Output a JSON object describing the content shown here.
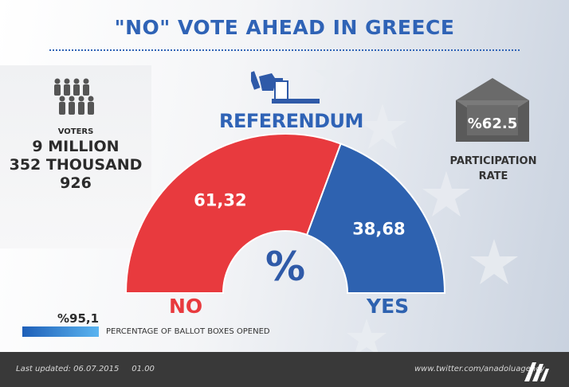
{
  "title": "\"NO\" VOTE AHEAD IN GREECE",
  "voters": {
    "label": "VOTERS",
    "line1": "9 MILLION",
    "line2": "352 THOUSAND",
    "line3": "926"
  },
  "referendum_label": "REFERENDUM",
  "participation": {
    "value": "%62.5",
    "label_line1": "PARTICIPATION",
    "label_line2": "RATE"
  },
  "chart_data": {
    "type": "pie",
    "variant": "half-donut",
    "categories": [
      "NO",
      "YES"
    ],
    "values": [
      61.32,
      38.68
    ],
    "value_labels": [
      "61,32",
      "38,68"
    ],
    "colors": [
      "#e83a3e",
      "#2e62b0"
    ],
    "center_label": "%"
  },
  "ballot": {
    "value": "%95,1",
    "value_number": 95.1,
    "label": "PERCENTAGE OF BALLOT BOXES OPENED"
  },
  "footer": {
    "updated": "Last updated: 06.07.2015     01.00",
    "twitter": "www.twitter.com/anadoluagency"
  },
  "colors": {
    "accent_blue": "#2f63b6",
    "no_red": "#e83a3e",
    "yes_blue": "#2e62b0",
    "footer_bg": "#393939"
  }
}
